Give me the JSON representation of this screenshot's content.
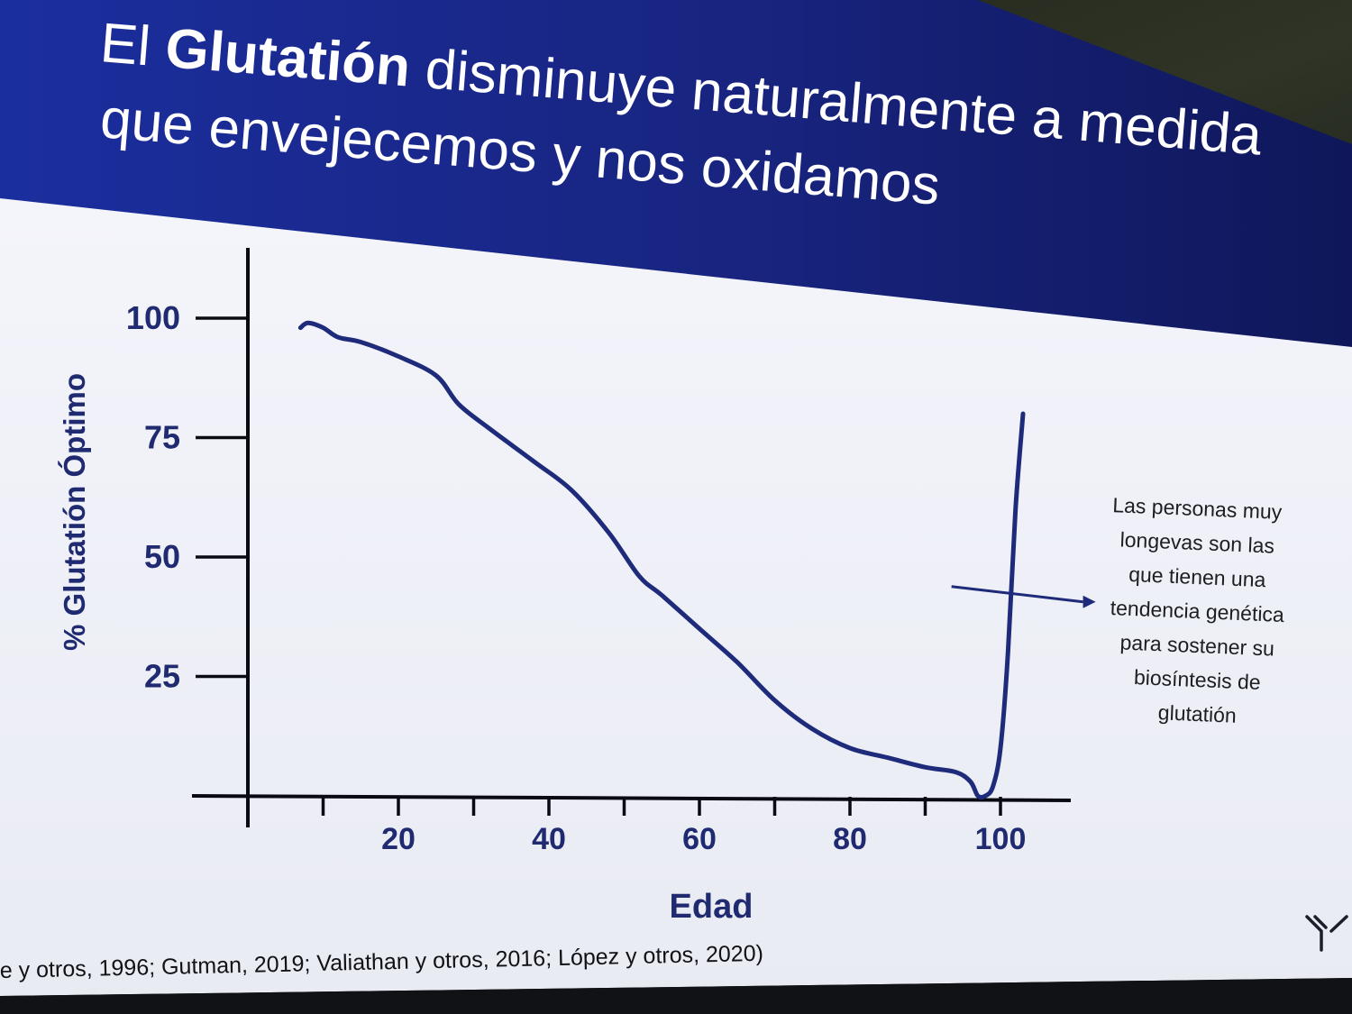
{
  "slide": {
    "title_prefix": "El",
    "title_bold": "Glutatión",
    "title_line1_rest": "disminuye naturalmente a medida",
    "title_line2": "que envejecemos y nos oxidamos",
    "citation": "e y otros, 1996;  Gutman, 2019; Valiathan y otros, 2016; López y otros, 2020)",
    "annotation": [
      "Las personas muy",
      "longevas son las",
      "que tienen una",
      "tendencia genética",
      "para sostener su",
      "biosíntesis de",
      "glutatión"
    ],
    "logo_icon": "y-logo-icon",
    "colors": {
      "accent": "#1e2a7a",
      "title_text": "#ffffff",
      "banner": "#1a2a8c",
      "slide_bg": "#eef0f7"
    }
  },
  "chart_data": {
    "type": "line",
    "title": "",
    "xlabel": "Edad",
    "ylabel": "% Glutatión Óptimo",
    "xlim": [
      0,
      110
    ],
    "ylim": [
      0,
      110
    ],
    "xticks": [
      20,
      40,
      60,
      80,
      100
    ],
    "xticks_minor": [
      10,
      30,
      50,
      70,
      90
    ],
    "yticks": [
      25,
      50,
      75,
      100
    ],
    "series": [
      {
        "name": "",
        "x": [
          7,
          8,
          10,
          12,
          15,
          20,
          25,
          28,
          32,
          38,
          43,
          48,
          52,
          55,
          60,
          65,
          70,
          75,
          80,
          85,
          90,
          94,
          96,
          97,
          98,
          99,
          100,
          101,
          102,
          103
        ],
        "y": [
          98,
          99,
          98,
          96,
          95,
          92,
          88,
          82,
          77,
          70,
          64,
          55,
          46,
          42,
          35,
          28,
          20,
          14,
          10,
          8,
          6,
          5,
          3,
          0,
          0,
          2,
          10,
          30,
          60,
          80
        ]
      }
    ],
    "annotation_arrow": {
      "from": [
        99,
        44
      ],
      "to": [
        116,
        41
      ]
    },
    "grid": false,
    "legend": "none"
  }
}
